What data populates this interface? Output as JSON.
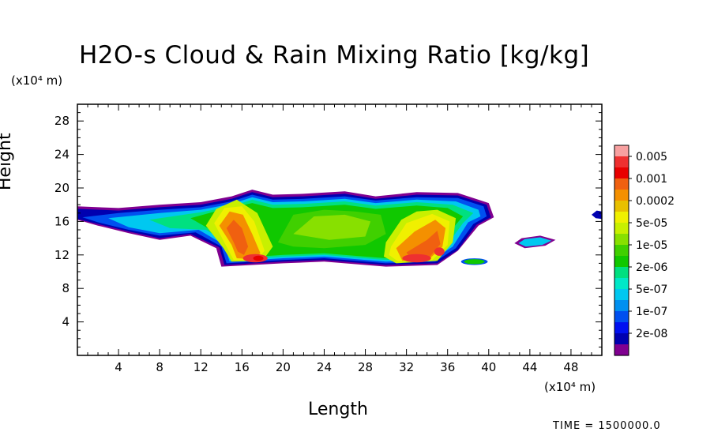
{
  "chart_data": {
    "type": "heatmap",
    "title": "H2O-s Cloud & Rain Mixing Ratio [kg/kg]",
    "xlabel": "Length",
    "ylabel": "Height",
    "x_unit": "(x10⁴ m)",
    "y_unit": "(x10⁴ m)",
    "xlim": [
      0,
      51
    ],
    "ylim": [
      0,
      30
    ],
    "xticks": [
      4,
      8,
      12,
      16,
      20,
      24,
      28,
      32,
      36,
      40,
      44,
      48
    ],
    "yticks": [
      4,
      8,
      12,
      16,
      20,
      24,
      28
    ],
    "colorbar": {
      "labels": [
        "0.005",
        "0.001",
        "0.0002",
        "5e-05",
        "1e-05",
        "2e-06",
        "5e-07",
        "1e-07",
        "2e-08"
      ],
      "colors": [
        "#f7a0a0",
        "#ee3030",
        "#e80000",
        "#f06010",
        "#f49000",
        "#e8c000",
        "#f0f000",
        "#c8f000",
        "#88e000",
        "#40d000",
        "#10c800",
        "#00e080",
        "#00e8c8",
        "#00c8f0",
        "#0090f0",
        "#0050f0",
        "#0010f0",
        "#0000b0",
        "#800090"
      ]
    },
    "cloud_regions": [
      {
        "name": "main-stratiform-layer",
        "x_range": [
          0,
          40.5
        ],
        "y_range": [
          10.5,
          19.8
        ],
        "level": "1e-07 to 5e-05"
      },
      {
        "name": "convective-core-west",
        "x_center": 15.5,
        "y_range": [
          10.8,
          18
        ],
        "level": "0.0002 to 0.001"
      },
      {
        "name": "convective-core-east",
        "x_center": 34.5,
        "y_range": [
          10.8,
          17
        ],
        "level": "0.0002 to 0.001"
      },
      {
        "name": "detached-cloud-east",
        "x_range": [
          42.5,
          46.5
        ],
        "y_range": [
          12.8,
          14.3
        ],
        "level": "5e-07 to 2e-06"
      },
      {
        "name": "detached-cloud-edge",
        "x_range": [
          50,
          51
        ],
        "y_range": [
          16.3,
          17.3
        ],
        "level": "1e-07 to 5e-07"
      }
    ]
  },
  "time_label": "TIME = 1500000.0"
}
